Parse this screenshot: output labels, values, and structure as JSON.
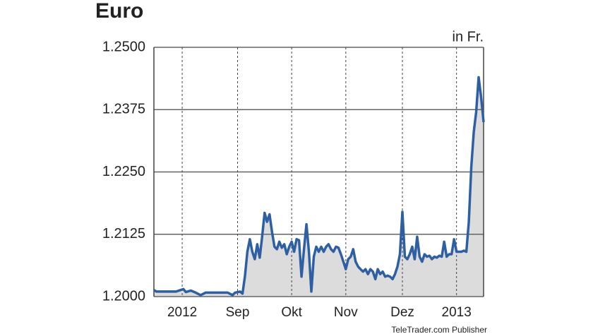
{
  "chart_data": {
    "type": "line",
    "title": "Euro",
    "unit_label": "in Fr.",
    "source": "TeleTrader.com Publisher",
    "x": [
      0,
      1,
      3,
      6,
      9,
      12,
      13,
      15,
      17,
      19,
      21,
      24,
      27,
      30,
      32,
      33,
      35,
      36,
      37,
      38,
      39,
      40,
      41,
      42,
      43,
      44,
      45,
      46,
      47,
      48,
      49,
      50,
      51,
      52,
      53,
      54,
      55,
      56,
      57,
      58,
      59,
      60,
      61,
      62,
      63,
      64,
      65,
      66,
      67,
      68,
      69,
      70,
      71,
      72,
      73,
      74,
      75,
      76,
      77,
      78,
      79,
      80,
      81,
      82,
      83,
      84,
      85,
      86,
      87,
      88,
      89,
      90,
      91,
      92,
      93,
      94,
      95,
      96,
      97,
      98,
      99,
      100,
      101,
      102,
      103,
      104,
      105,
      106,
      107,
      108,
      109,
      110,
      111,
      112,
      113,
      114,
      115,
      116,
      117,
      118,
      119,
      120,
      121,
      122,
      123,
      124,
      125,
      126,
      127,
      128,
      129,
      130,
      131,
      132,
      133,
      134
    ],
    "series": [
      {
        "name": "Euro",
        "color": "#2f5fa3",
        "values": [
          1.2013,
          1.201,
          1.201,
          1.201,
          1.201,
          1.2015,
          1.2009,
          1.2012,
          1.2008,
          1.2003,
          1.2008,
          1.2008,
          1.2008,
          1.2008,
          1.2003,
          1.2008,
          1.201,
          1.2006,
          1.204,
          1.209,
          1.2115,
          1.209,
          1.2075,
          1.2105,
          1.2078,
          1.212,
          1.2168,
          1.215,
          1.2165,
          1.213,
          1.21,
          1.2095,
          1.211,
          1.2098,
          1.2105,
          1.2085,
          1.21,
          1.211,
          1.209,
          1.2115,
          1.2113,
          1.204,
          1.2095,
          1.2145,
          1.209,
          1.201,
          1.208,
          1.21,
          1.209,
          1.21,
          1.209,
          1.21,
          1.2105,
          1.2095,
          1.209,
          1.21,
          1.2098,
          1.2085,
          1.207,
          1.2055,
          1.2075,
          1.208,
          1.2095,
          1.207,
          1.206,
          1.2055,
          1.205,
          1.2055,
          1.2045,
          1.2055,
          1.205,
          1.2035,
          1.2055,
          1.2045,
          1.205,
          1.204,
          1.2042,
          1.204,
          1.2035,
          1.2045,
          1.206,
          1.2085,
          1.217,
          1.208,
          1.2075,
          1.2085,
          1.21,
          1.2075,
          1.212,
          1.208,
          1.207,
          1.2085,
          1.208,
          1.2082,
          1.2075,
          1.208,
          1.2078,
          1.2082,
          1.208,
          1.211,
          1.208,
          1.2085,
          1.2085,
          1.2115,
          1.209,
          1.209,
          1.209,
          1.2092,
          1.209,
          1.215,
          1.226,
          1.233,
          1.237,
          1.244,
          1.24,
          1.235
        ]
      }
    ],
    "xlim": [
      0,
      134
    ],
    "xticks": [
      {
        "value": 11.5,
        "label": "2012"
      },
      {
        "value": 34,
        "label": "Sep"
      },
      {
        "value": 56,
        "label": "Okt"
      },
      {
        "value": 78,
        "label": "Nov"
      },
      {
        "value": 101,
        "label": "Dez"
      },
      {
        "value": 123,
        "label": "2013"
      }
    ],
    "ylim": [
      1.2,
      1.25
    ],
    "yticks": [
      {
        "value": 1.2,
        "label": "1.2000"
      },
      {
        "value": 1.2125,
        "label": "1.2125"
      },
      {
        "value": 1.225,
        "label": "1.2250"
      },
      {
        "value": 1.2375,
        "label": "1.2375"
      },
      {
        "value": 1.25,
        "label": "1.2500"
      }
    ],
    "grid": true,
    "area_color": "#dcdcdc"
  }
}
